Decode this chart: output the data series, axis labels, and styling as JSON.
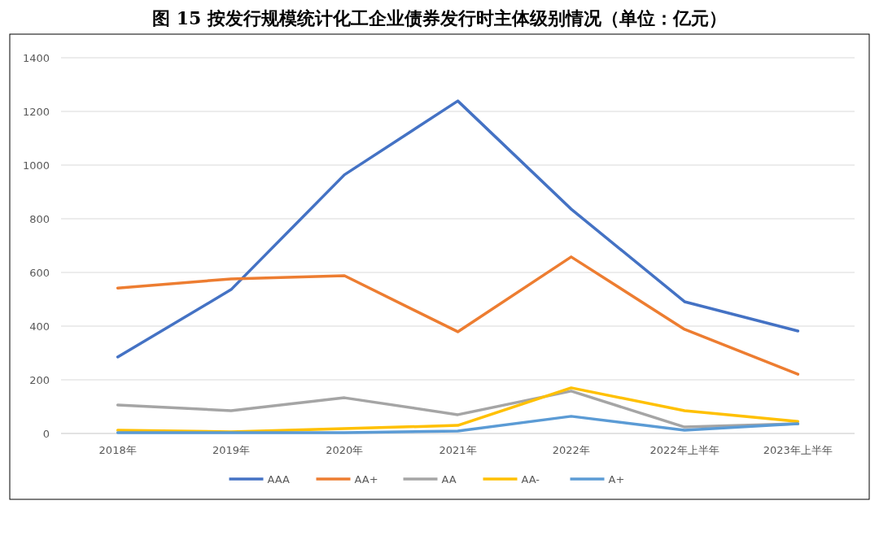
{
  "chart_data": {
    "type": "line",
    "title": "图 15  按发行规模统计化工企业债券发行时主体级别情况（单位：亿元）",
    "categories": [
      "2018年",
      "2019年",
      "2020年",
      "2021年",
      "2022年",
      "2022年上半年",
      "2023年上半年"
    ],
    "series": [
      {
        "name": "AAA",
        "color": "#4472c4",
        "values": [
          285,
          536,
          964,
          1239,
          836,
          491,
          382
        ]
      },
      {
        "name": "AA+",
        "color": "#ed7d31",
        "values": [
          542,
          576,
          588,
          379,
          658,
          388,
          221
        ]
      },
      {
        "name": "AA",
        "color": "#a5a5a5",
        "values": [
          106,
          85,
          133,
          70,
          158,
          24,
          36
        ]
      },
      {
        "name": "AA-",
        "color": "#ffc000",
        "values": [
          12,
          6,
          18,
          30,
          170,
          85,
          45
        ]
      },
      {
        "name": "A+",
        "color": "#5b9bd5",
        "values": [
          3,
          3,
          3,
          9,
          64,
          12,
          36
        ]
      }
    ],
    "ylim": [
      0,
      1400
    ],
    "yticks": [
      0,
      200,
      400,
      600,
      800,
      1000,
      1200,
      1400
    ],
    "grid": "y",
    "legend": "bottom",
    "marker": "none",
    "line_style": "solid"
  }
}
